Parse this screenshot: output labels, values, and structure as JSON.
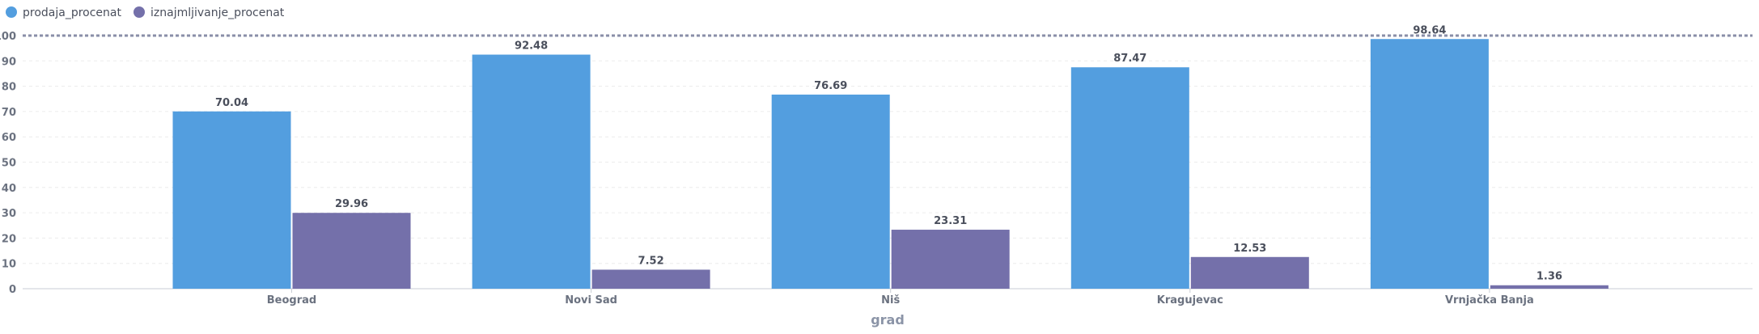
{
  "chart_data": {
    "type": "bar",
    "title": "",
    "xlabel": "grad",
    "ylabel": "",
    "categories": [
      "Beograd",
      "Novi Sad",
      "Niš",
      "Kragujevac",
      "Vrnjačka Banja"
    ],
    "series": [
      {
        "name": "prodaja_procenat",
        "color": "#539edf",
        "values": [
          70.04,
          92.48,
          76.69,
          87.47,
          98.64
        ]
      },
      {
        "name": "iznajmljivanje_procenat",
        "color": "#7470aa",
        "values": [
          29.96,
          7.52,
          23.31,
          12.53,
          1.36
        ]
      }
    ],
    "ylim": [
      0,
      100
    ],
    "yticks": [
      0,
      10,
      20,
      30,
      40,
      50,
      60,
      70,
      80,
      90,
      100
    ],
    "reference_line": 100,
    "grid": true,
    "legend_position": "top-left"
  }
}
